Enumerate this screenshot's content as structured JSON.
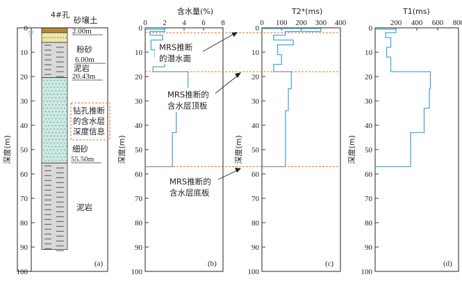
{
  "borehole": {
    "title": "4#孔",
    "layers": [
      {
        "name": "砂壤土",
        "depth_label": "2.00m",
        "top": 0,
        "bottom": 2,
        "pattern": "soil"
      },
      {
        "name": "粉砂",
        "depth_label": "6.00m",
        "top": 2,
        "bottom": 6,
        "pattern": "silt"
      },
      {
        "name": "泥岩",
        "depth_label": "20.43m",
        "top": 6,
        "bottom": 20.43,
        "pattern": "mudstone"
      },
      {
        "name": "细砂",
        "depth_label": "55.50m",
        "top": 20.43,
        "bottom": 55.5,
        "pattern": "sand"
      },
      {
        "name": "泥岩",
        "depth_label": "",
        "top": 55.5,
        "bottom": 91,
        "pattern": "mudstone"
      }
    ],
    "note": [
      "钻孔推断",
      "的含水层",
      "深度信息"
    ],
    "panel_label": "(a)"
  },
  "annotations": {
    "water_table": [
      "MRS推断",
      "的潜水面"
    ],
    "aquifer_top": [
      "MRS推断的",
      "含水层顶板"
    ],
    "aquifer_bottom": [
      "MRS推断的",
      "含水层底板"
    ],
    "dashed_depths": [
      2,
      18,
      57
    ]
  },
  "axis_common": {
    "ylabel": "深度(m)",
    "yticks": [
      0,
      10,
      20,
      30,
      40,
      50,
      60,
      70,
      80,
      90,
      100
    ]
  },
  "chart_data": [
    {
      "type": "line",
      "panel": "(b)",
      "title": "含水量(%)",
      "xlim": [
        0,
        8
      ],
      "xticks": [
        0,
        2,
        4,
        6,
        8
      ],
      "ylim": [
        100,
        0
      ],
      "series": [
        {
          "steps": [
            [
              0,
              0.6
            ],
            [
              2,
              0.6
            ],
            [
              2,
              1.5
            ],
            [
              0.5,
              1.5
            ],
            [
              0.5,
              3
            ],
            [
              1.8,
              3
            ],
            [
              1.8,
              5
            ],
            [
              0.6,
              5
            ],
            [
              0.6,
              9
            ],
            [
              1.0,
              9
            ],
            [
              1.0,
              12
            ],
            [
              2.0,
              12
            ],
            [
              2.0,
              16
            ],
            [
              0.8,
              16
            ],
            [
              0.8,
              18
            ],
            [
              4.4,
              18
            ],
            [
              4.4,
              25
            ],
            [
              3.3,
              25
            ],
            [
              3.3,
              33
            ],
            [
              3.2,
              33
            ],
            [
              3.2,
              43
            ],
            [
              2.8,
              43
            ],
            [
              2.8,
              57
            ],
            [
              0,
              57
            ]
          ]
        }
      ]
    },
    {
      "type": "line",
      "panel": "(c)",
      "title": "T2*(ms)",
      "xlim": [
        0,
        400
      ],
      "xticks": [
        0,
        100,
        200,
        300,
        400
      ],
      "ylim": [
        100,
        0
      ],
      "series": [
        {
          "steps": [
            [
              0,
              0.3
            ],
            [
              300,
              0.3
            ],
            [
              300,
              1.5
            ],
            [
              120,
              1.5
            ],
            [
              120,
              3
            ],
            [
              60,
              3
            ],
            [
              60,
              5
            ],
            [
              160,
              5
            ],
            [
              160,
              7
            ],
            [
              80,
              7
            ],
            [
              80,
              11
            ],
            [
              100,
              11
            ],
            [
              100,
              15
            ],
            [
              60,
              15
            ],
            [
              60,
              18
            ],
            [
              150,
              18
            ],
            [
              150,
              25
            ],
            [
              135,
              25
            ],
            [
              135,
              34
            ],
            [
              120,
              34
            ],
            [
              120,
              57
            ],
            [
              0,
              57
            ]
          ]
        }
      ]
    },
    {
      "type": "line",
      "panel": "(d)",
      "title": "T1(ms)",
      "xlim": [
        0,
        800
      ],
      "xticks": [
        200,
        400,
        600,
        800
      ],
      "ylim": [
        100,
        0
      ],
      "series": [
        {
          "steps": [
            [
              0,
              0.5
            ],
            [
              200,
              0.5
            ],
            [
              200,
              2
            ],
            [
              100,
              2
            ],
            [
              100,
              4
            ],
            [
              150,
              4
            ],
            [
              150,
              8
            ],
            [
              110,
              8
            ],
            [
              110,
              12
            ],
            [
              150,
              12
            ],
            [
              150,
              18
            ],
            [
              530,
              18
            ],
            [
              530,
              25
            ],
            [
              520,
              25
            ],
            [
              520,
              33
            ],
            [
              470,
              33
            ],
            [
              470,
              43
            ],
            [
              340,
              43
            ],
            [
              340,
              57
            ],
            [
              0,
              57
            ]
          ]
        }
      ]
    }
  ],
  "colors": {
    "curve": "#4aa6dc",
    "dash": "#e46b3a",
    "frame": "#222222",
    "sand": "#c9e8e2",
    "soil": "#b48a3c",
    "silt": "#efe6a8",
    "mudstone": "#d9d9d9"
  }
}
